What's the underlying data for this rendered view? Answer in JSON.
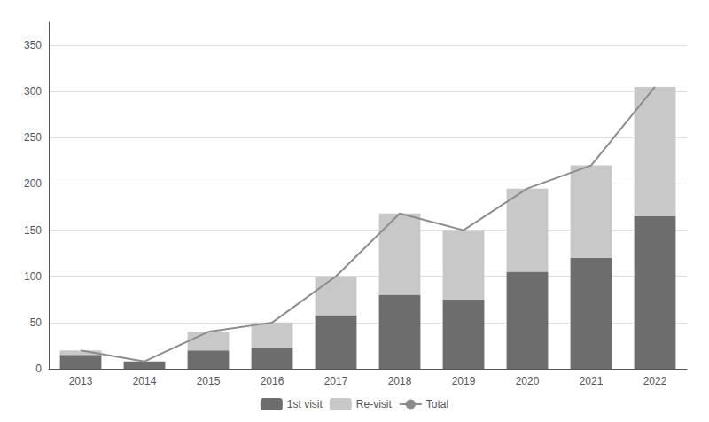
{
  "chart_data": {
    "type": "bar",
    "categories": [
      "2013",
      "2014",
      "2015",
      "2016",
      "2017",
      "2018",
      "2019",
      "2020",
      "2021",
      "2022"
    ],
    "series": [
      {
        "name": "1st visit",
        "type": "bar",
        "color": "#6d6d6d",
        "values": [
          15,
          8,
          20,
          22,
          58,
          80,
          75,
          105,
          120,
          165
        ]
      },
      {
        "name": "Re-visit",
        "type": "bar",
        "color": "#c8c8c8",
        "values": [
          5,
          0,
          20,
          28,
          42,
          88,
          75,
          90,
          100,
          140
        ]
      },
      {
        "name": "Total",
        "type": "line",
        "color": "#8c8c8c",
        "values": [
          20,
          8,
          40,
          50,
          100,
          168,
          150,
          195,
          220,
          305
        ]
      }
    ],
    "stacked": true,
    "ylim": [
      0,
      375
    ],
    "yticks": [
      0,
      50,
      100,
      150,
      200,
      250,
      300,
      350
    ],
    "grid": true,
    "legend": "bottom"
  }
}
